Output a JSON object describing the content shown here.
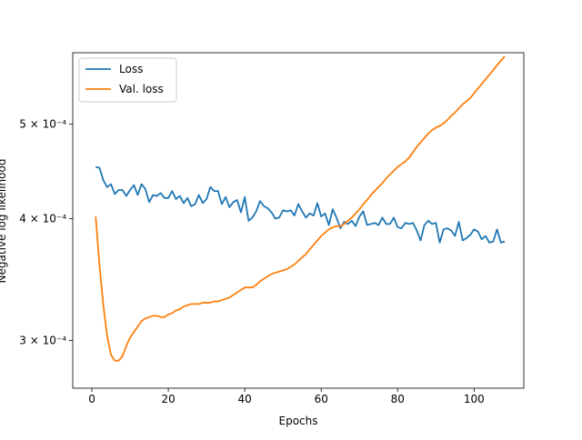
{
  "chart_data": {
    "type": "line",
    "title": "",
    "xlabel": "Epochs",
    "ylabel": "Negative log likelihood",
    "xlim": [
      -5,
      113
    ],
    "ylim": [
      0.000268,
      0.000592
    ],
    "yscale": "log",
    "grid": false,
    "legend_position": "top-left",
    "x_ticks": [
      0,
      20,
      40,
      60,
      80,
      100
    ],
    "y_ticks": [
      {
        "value": 0.0003,
        "label": "3 × 10⁻⁴"
      },
      {
        "value": 0.0004,
        "label": "4 × 10⁻⁴"
      },
      {
        "value": 0.0005,
        "label": "5 × 10⁻⁴"
      }
    ],
    "x": [
      1,
      2,
      3,
      4,
      5,
      6,
      7,
      8,
      9,
      10,
      11,
      12,
      13,
      14,
      15,
      16,
      17,
      18,
      19,
      20,
      21,
      22,
      23,
      24,
      25,
      26,
      27,
      28,
      29,
      30,
      31,
      32,
      33,
      34,
      35,
      36,
      37,
      38,
      39,
      40,
      41,
      42,
      43,
      44,
      45,
      46,
      47,
      48,
      49,
      50,
      51,
      52,
      53,
      54,
      55,
      56,
      57,
      58,
      59,
      60,
      61,
      62,
      63,
      64,
      65,
      66,
      67,
      68,
      69,
      70,
      71,
      72,
      73,
      74,
      75,
      76,
      77,
      78,
      79,
      80,
      81,
      82,
      83,
      84,
      85,
      86,
      87,
      88,
      89,
      90,
      91,
      92,
      93,
      94,
      95,
      96,
      97,
      98,
      99,
      100,
      101,
      102,
      103,
      104,
      105,
      106,
      107,
      108
    ],
    "series": [
      {
        "name": "Loss",
        "color": "#1f77b4",
        "values": [
          0.000452,
          0.000451,
          0.000438,
          0.000431,
          0.000434,
          0.000424,
          0.000428,
          0.000428,
          0.000422,
          0.000428,
          0.000433,
          0.000423,
          0.000434,
          0.000429,
          0.000416,
          0.000423,
          0.000422,
          0.000425,
          0.00042,
          0.00042,
          0.000427,
          0.000419,
          0.000422,
          0.000415,
          0.00042,
          0.000412,
          0.000414,
          0.000423,
          0.000415,
          0.000419,
          0.000431,
          0.000427,
          0.000427,
          0.000414,
          0.000421,
          0.000411,
          0.000416,
          0.000418,
          0.000406,
          0.000421,
          0.000398,
          0.000401,
          0.000407,
          0.000417,
          0.000412,
          0.00041,
          0.000406,
          0.0004,
          0.000401,
          0.000408,
          0.000407,
          0.000408,
          0.000403,
          0.000414,
          0.000407,
          0.000401,
          0.000405,
          0.000403,
          0.000415,
          0.000402,
          0.000405,
          0.000394,
          0.000409,
          0.000401,
          0.000391,
          0.000397,
          0.000395,
          0.000398,
          0.000393,
          0.000402,
          0.000407,
          0.000394,
          0.000395,
          0.000396,
          0.000394,
          0.000401,
          0.000395,
          0.000395,
          0.000401,
          0.000392,
          0.000391,
          0.000396,
          0.000395,
          0.000396,
          0.000389,
          0.00038,
          0.000394,
          0.000398,
          0.000395,
          0.000396,
          0.000378,
          0.00039,
          0.000391,
          0.000389,
          0.000384,
          0.000397,
          0.00038,
          0.000382,
          0.000385,
          0.00039,
          0.000388,
          0.000381,
          0.000384,
          0.000378,
          0.000379,
          0.00039,
          0.000378,
          0.000379
        ]
      },
      {
        "name": "Val. loss",
        "color": "#ff7f0e",
        "values": [
          0.000402,
          0.000358,
          0.000326,
          0.000303,
          0.00029,
          0.000286,
          0.000286,
          0.000289,
          0.000296,
          0.000302,
          0.000306,
          0.00031,
          0.000314,
          0.000316,
          0.000317,
          0.000318,
          0.000318,
          0.000317,
          0.000317,
          0.000319,
          0.00032,
          0.000322,
          0.000323,
          0.000325,
          0.000326,
          0.000327,
          0.000327,
          0.000327,
          0.000328,
          0.000328,
          0.000328,
          0.000329,
          0.000329,
          0.00033,
          0.000331,
          0.000332,
          0.000334,
          0.000336,
          0.000338,
          0.00034,
          0.00034,
          0.00034,
          0.000342,
          0.000345,
          0.000347,
          0.000349,
          0.000351,
          0.000352,
          0.000353,
          0.000354,
          0.000355,
          0.000357,
          0.000359,
          0.000362,
          0.000365,
          0.000368,
          0.000372,
          0.000376,
          0.00038,
          0.000384,
          0.000387,
          0.00039,
          0.000392,
          0.000393,
          0.000393,
          0.000395,
          0.000398,
          0.000401,
          0.000405,
          0.000409,
          0.000414,
          0.000418,
          0.000423,
          0.000427,
          0.000431,
          0.000435,
          0.00044,
          0.000444,
          0.000448,
          0.000452,
          0.000455,
          0.000458,
          0.000462,
          0.000468,
          0.000474,
          0.000479,
          0.000484,
          0.000489,
          0.000493,
          0.000496,
          0.000498,
          0.000501,
          0.000505,
          0.00051,
          0.000514,
          0.000519,
          0.000524,
          0.000528,
          0.000532,
          0.000538,
          0.000544,
          0.00055,
          0.000556,
          0.000562,
          0.000568,
          0.000575,
          0.000581,
          0.000587
        ]
      }
    ]
  }
}
